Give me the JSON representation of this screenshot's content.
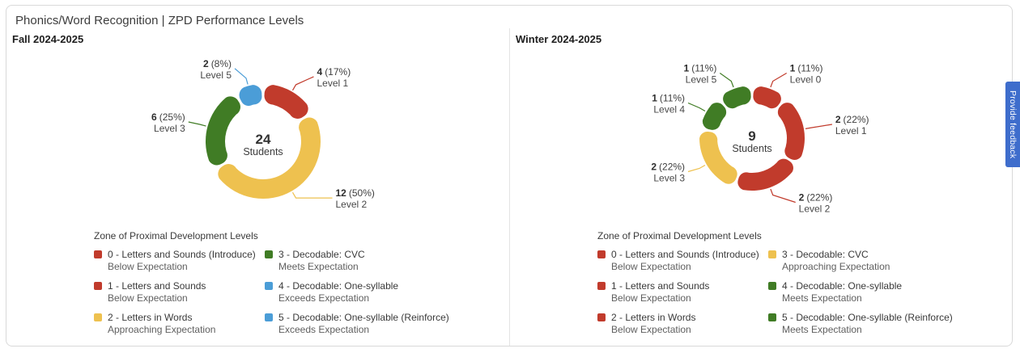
{
  "card_title": "Phonics/Word Recognition | ZPD Performance Levels",
  "feedback_tab": {
    "label": "Provide feedback",
    "color": "#3e6dcc"
  },
  "colors": {
    "red": "#c13b2c",
    "yellow": "#eec14f",
    "green": "#407c25",
    "blue": "#4b9dd7"
  },
  "panels": [
    {
      "header": "Fall 2024-2025",
      "legend": {
        "title": "Zone of Proximal Development Levels",
        "items": [
          {
            "label": "0 - Letters and Sounds (Introduce)",
            "sublabel": "Below Expectation",
            "color": "#c13b2c"
          },
          {
            "label": "1 - Letters and Sounds",
            "sublabel": "Below Expectation",
            "color": "#c13b2c"
          },
          {
            "label": "2 - Letters in Words",
            "sublabel": "Approaching Expectation",
            "color": "#eec14f"
          },
          {
            "label": "3 - Decodable: CVC",
            "sublabel": "Meets Expectation",
            "color": "#407c25"
          },
          {
            "label": "4 - Decodable: One-syllable",
            "sublabel": "Exceeds Expectation",
            "color": "#4b9dd7"
          },
          {
            "label": "5 - Decodable: One-syllable (Reinforce)",
            "sublabel": "Exceeds Expectation",
            "color": "#4b9dd7"
          }
        ]
      }
    },
    {
      "header": "Winter 2024-2025",
      "legend": {
        "title": "Zone of Proximal Development Levels",
        "items": [
          {
            "label": "0 - Letters and Sounds (Introduce)",
            "sublabel": "Below Expectation",
            "color": "#c13b2c"
          },
          {
            "label": "1 - Letters and Sounds",
            "sublabel": "Below Expectation",
            "color": "#c13b2c"
          },
          {
            "label": "2 - Letters in Words",
            "sublabel": "Below Expectation",
            "color": "#c13b2c"
          },
          {
            "label": "3 - Decodable: CVC",
            "sublabel": "Approaching Expectation",
            "color": "#eec14f"
          },
          {
            "label": "4 - Decodable: One-syllable",
            "sublabel": "Meets Expectation",
            "color": "#407c25"
          },
          {
            "label": "5 - Decodable: One-syllable (Reinforce)",
            "sublabel": "Meets Expectation",
            "color": "#407c25"
          }
        ]
      }
    }
  ],
  "chart_data": [
    {
      "type": "pie",
      "variant": "donut",
      "title": "Fall 2024-2025",
      "total_students": 24,
      "center": {
        "value": "24",
        "label": "Students"
      },
      "slices": [
        {
          "level": "Level 1",
          "value": 4,
          "pct": "17%",
          "color": "#c13b2c"
        },
        {
          "level": "Level 2",
          "value": 12,
          "pct": "50%",
          "color": "#eec14f"
        },
        {
          "level": "Level 3",
          "value": 6,
          "pct": "25%",
          "color": "#407c25"
        },
        {
          "level": "Level 5",
          "value": 2,
          "pct": "8%",
          "color": "#4b9dd7"
        }
      ]
    },
    {
      "type": "pie",
      "variant": "donut",
      "title": "Winter 2024-2025",
      "total_students": 9,
      "center": {
        "value": "9",
        "label": "Students"
      },
      "slices": [
        {
          "level": "Level 0",
          "value": 1,
          "pct": "11%",
          "color": "#c13b2c"
        },
        {
          "level": "Level 1",
          "value": 2,
          "pct": "22%",
          "color": "#c13b2c"
        },
        {
          "level": "Level 2",
          "value": 2,
          "pct": "22%",
          "color": "#c13b2c"
        },
        {
          "level": "Level 3",
          "value": 2,
          "pct": "22%",
          "color": "#eec14f"
        },
        {
          "level": "Level 4",
          "value": 1,
          "pct": "11%",
          "color": "#407c25"
        },
        {
          "level": "Level 5",
          "value": 1,
          "pct": "11%",
          "color": "#407c25"
        }
      ]
    }
  ]
}
